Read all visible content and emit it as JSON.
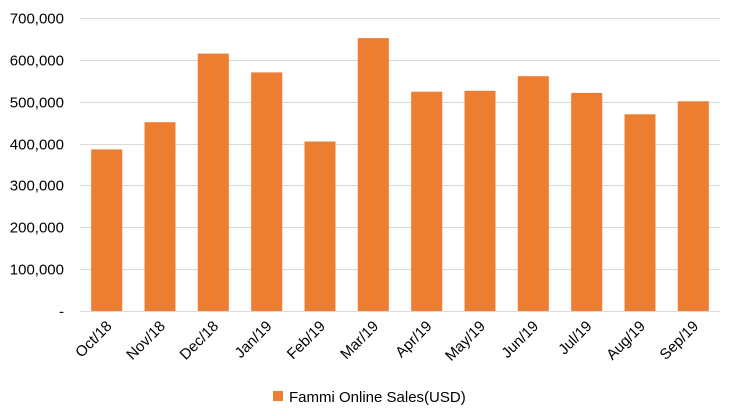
{
  "chart_data": {
    "type": "bar",
    "categories": [
      "Oct/18",
      "Nov/18",
      "Dec/18",
      "Jan/19",
      "Feb/19",
      "Mar/19",
      "Apr/19",
      "May/19",
      "Jun/19",
      "Jul/19",
      "Aug/19",
      "Sep/19"
    ],
    "series": [
      {
        "name": "Fammi Online Sales(USD)",
        "color": "#ed7d31",
        "values": [
          386000,
          451000,
          615000,
          570000,
          405000,
          652000,
          524000,
          526000,
          561000,
          521000,
          470000,
          501000
        ]
      }
    ],
    "yticks": [
      {
        "value": 0,
        "label": "-"
      },
      {
        "value": 100000,
        "label": "100,000"
      },
      {
        "value": 200000,
        "label": "200,000"
      },
      {
        "value": 300000,
        "label": "300,000"
      },
      {
        "value": 400000,
        "label": "400,000"
      },
      {
        "value": 500000,
        "label": "500,000"
      },
      {
        "value": 600000,
        "label": "600,000"
      },
      {
        "value": 700000,
        "label": "700,000"
      }
    ],
    "ylim": [
      0,
      700000
    ],
    "grid": true,
    "legend_position": "bottom"
  }
}
